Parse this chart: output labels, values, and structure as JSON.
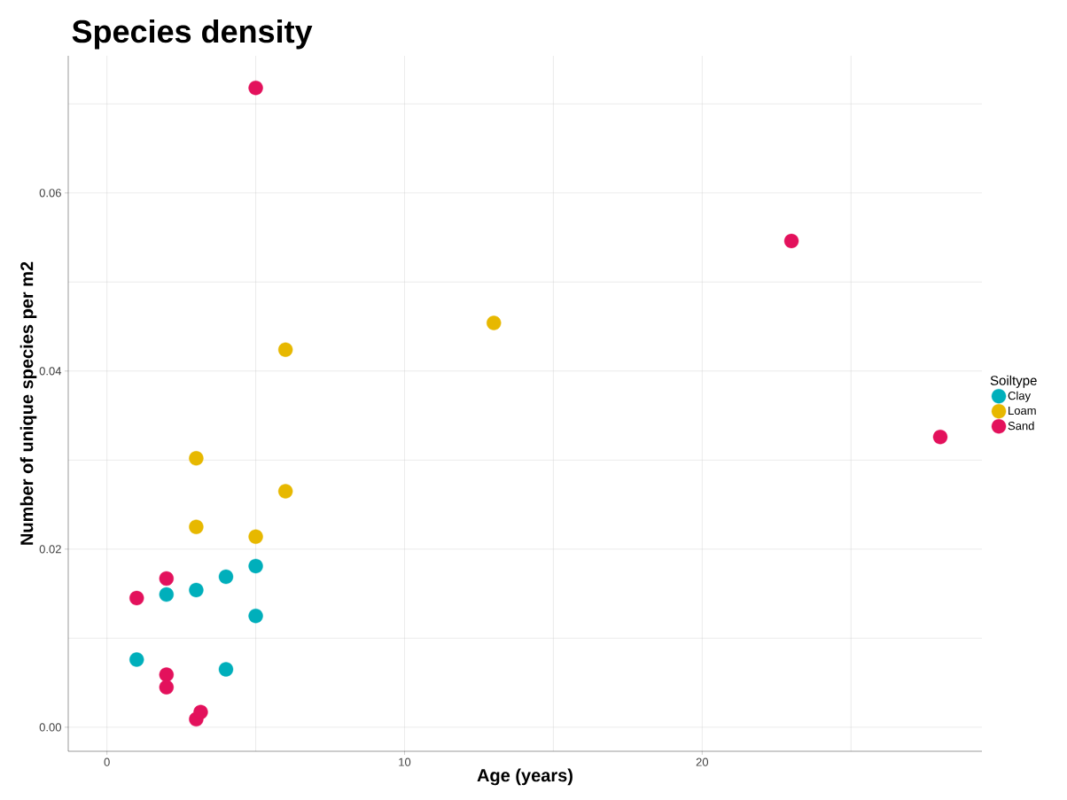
{
  "chart_data": {
    "type": "scatter",
    "title": "Species density",
    "xlabel": "Age (years)",
    "ylabel": "Number of unique species per m2",
    "legend_title": "Soiltype",
    "legend": "right",
    "grid": true,
    "marker": "circle",
    "xlim": [
      -1.3,
      29.4
    ],
    "ylim": [
      -0.0027,
      0.0754
    ],
    "xticks": [
      0,
      {
        "value": 5,
        "label": null
      },
      10,
      {
        "value": 15,
        "label": null
      },
      20,
      {
        "value": 25,
        "label": null
      }
    ],
    "yticks": [
      {
        "value": 0,
        "label": "0.00"
      },
      {
        "value": 0.01,
        "label": null
      },
      {
        "value": 0.02,
        "label": "0.02"
      },
      {
        "value": 0.03,
        "label": null
      },
      {
        "value": 0.04,
        "label": "0.04"
      },
      {
        "value": 0.05,
        "label": null
      },
      {
        "value": 0.06,
        "label": "0.06"
      },
      {
        "value": 0.07,
        "label": null
      }
    ],
    "series": [
      {
        "name": "Clay",
        "color": "#00afbb",
        "x": [
          1,
          2,
          3,
          4,
          5,
          5,
          4
        ],
        "values": [
          0.0076,
          0.0149,
          0.0154,
          0.0169,
          0.0181,
          0.0125,
          0.0065
        ]
      },
      {
        "name": "Loam",
        "color": "#e7b800",
        "x": [
          3,
          3,
          5,
          6,
          6,
          13
        ],
        "values": [
          0.0302,
          0.0225,
          0.0214,
          0.0265,
          0.0424,
          0.0454
        ]
      },
      {
        "name": "Sand",
        "color": "#e3115c",
        "x": [
          1,
          2,
          2,
          2,
          3,
          3.15,
          5,
          23,
          28
        ],
        "values": [
          0.0145,
          0.0167,
          0.0059,
          0.0045,
          0.0009,
          0.0017,
          0.0718,
          0.0546,
          0.0326
        ]
      }
    ]
  }
}
